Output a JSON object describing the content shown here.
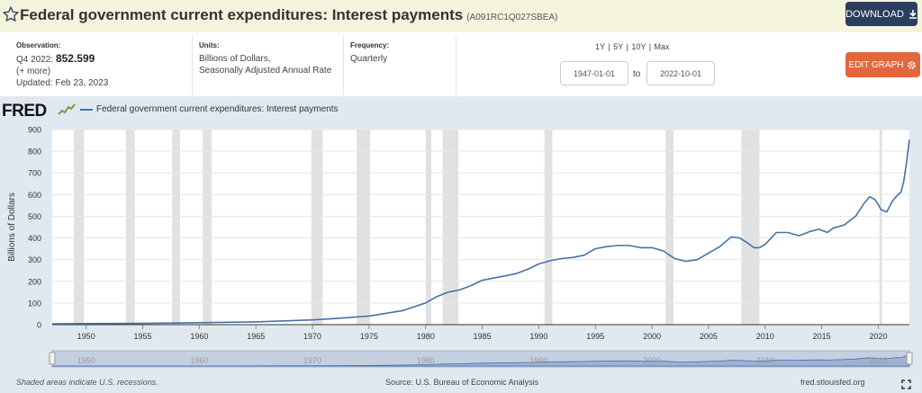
{
  "header": {
    "title": "Federal government current expenditures: Interest payments",
    "series_id": "(A091RC1Q027SBEA)",
    "download_label": "DOWNLOAD"
  },
  "meta": {
    "observation_label": "Observation:",
    "observation_period": "Q4 2022:",
    "observation_value": "852.599",
    "more": "(+ more)",
    "updated": "Updated: Feb 23, 2023",
    "units_label": "Units:",
    "units_line1": "Billions of Dollars,",
    "units_line2": "Seasonally Adjusted Annual Rate",
    "frequency_label": "Frequency:",
    "frequency": "Quarterly"
  },
  "controls": {
    "range_options": "1Y | 5Y | 10Y | Max",
    "start_date": "1947-01-01",
    "to_label": "to",
    "end_date": "2022-10-01",
    "edit_label": "EDIT GRAPH"
  },
  "logo": "FRED",
  "footer": {
    "note": "Shaded areas indicate U.S. recessions.",
    "source": "Source: U.S. Bureau of Economic Analysis",
    "site": "fred.stlouisfed.org"
  },
  "colors": {
    "series": "#4572a7",
    "download": "#2c3e5f",
    "edit": "#e2673f",
    "title_bg": "#f4f4dd",
    "chart_bg": "#e1e9f0",
    "recession": "#e1e1e1"
  },
  "chart_data": {
    "type": "line",
    "title": "",
    "ylabel": "Billions of Dollars",
    "xlabel": "",
    "xlim": [
      1947.0,
      2022.75
    ],
    "ylim": [
      0,
      900
    ],
    "yticks": [
      0,
      100,
      200,
      300,
      400,
      500,
      600,
      700,
      800,
      900
    ],
    "xticks": [
      1950,
      1955,
      1960,
      1965,
      1970,
      1975,
      1980,
      1985,
      1990,
      1995,
      2000,
      2005,
      2010,
      2015,
      2020
    ],
    "navigator_ticks": [
      1950,
      1960,
      1970,
      1980,
      1990,
      2000,
      2010,
      2020
    ],
    "legend": "top-left",
    "series": [
      {
        "name": "Federal government current expenditures: Interest payments",
        "x": [
          1947,
          1950,
          1955,
          1960,
          1965,
          1970,
          1972,
          1975,
          1978,
          1980,
          1981,
          1982,
          1983,
          1984,
          1985,
          1986,
          1987,
          1988,
          1989,
          1990,
          1991,
          1992,
          1993,
          1994,
          1995,
          1996,
          1997,
          1998,
          1999,
          2000,
          2001,
          2002,
          2003,
          2004,
          2005,
          2006,
          2007,
          2007.75,
          2008.5,
          2009,
          2009.5,
          2010,
          2011,
          2012,
          2013,
          2014,
          2014.75,
          2015.5,
          2016,
          2017,
          2018,
          2018.75,
          2019.25,
          2019.75,
          2020.25,
          2020.75,
          2021.25,
          2021.75,
          2022,
          2022.25,
          2022.5,
          2022.75
        ],
        "y": [
          4,
          5,
          6,
          9,
          13,
          22,
          28,
          40,
          65,
          100,
          130,
          150,
          160,
          180,
          205,
          215,
          225,
          235,
          255,
          280,
          295,
          305,
          310,
          320,
          350,
          360,
          365,
          365,
          355,
          355,
          340,
          305,
          292,
          300,
          330,
          360,
          405,
          400,
          375,
          355,
          355,
          370,
          425,
          425,
          410,
          430,
          440,
          425,
          445,
          460,
          500,
          560,
          590,
          575,
          530,
          520,
          570,
          600,
          610,
          660,
          750,
          852.599
        ]
      }
    ],
    "recessions": [
      [
        1948.9,
        1949.8
      ],
      [
        1953.5,
        1954.3
      ],
      [
        1957.6,
        1958.3
      ],
      [
        1960.3,
        1961.1
      ],
      [
        1969.9,
        1970.9
      ],
      [
        1973.9,
        1975.1
      ],
      [
        1980.0,
        1980.5
      ],
      [
        1981.5,
        1982.9
      ],
      [
        1990.5,
        1991.2
      ],
      [
        2001.2,
        2001.9
      ],
      [
        2007.9,
        2009.5
      ],
      [
        2020.1,
        2020.3
      ]
    ]
  }
}
